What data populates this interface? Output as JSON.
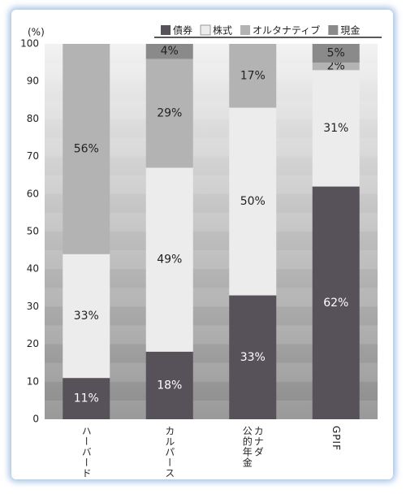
{
  "chart_data": {
    "type": "stacked-bar",
    "y_unit_label": "(%)",
    "categories": [
      "ハーバード",
      "カルパース",
      "カナダ\n公的年金",
      "GPIF"
    ],
    "series": [
      {
        "name": "債券",
        "color": "#57525a",
        "values": [
          11,
          18,
          33,
          62
        ],
        "value_labels": [
          "11%",
          "18%",
          "33%",
          "62%"
        ]
      },
      {
        "name": "株式",
        "color": "#ececec",
        "values": [
          33,
          49,
          50,
          31
        ],
        "value_labels": [
          "33%",
          "49%",
          "50%",
          "31%"
        ]
      },
      {
        "name": "オルタナティブ",
        "color": "#b3b3b3",
        "values": [
          56,
          29,
          17,
          2
        ],
        "value_labels": [
          "56%",
          "29%",
          "17%",
          "2%"
        ]
      },
      {
        "name": "現金",
        "color": "#8a8a8a",
        "values": [
          null,
          4,
          null,
          5
        ],
        "value_labels": [
          null,
          "4%",
          null,
          "5%"
        ]
      }
    ],
    "ylim": [
      0,
      100
    ],
    "yticks": [
      0,
      10,
      20,
      30,
      40,
      50,
      60,
      70,
      80,
      90,
      100
    ]
  }
}
